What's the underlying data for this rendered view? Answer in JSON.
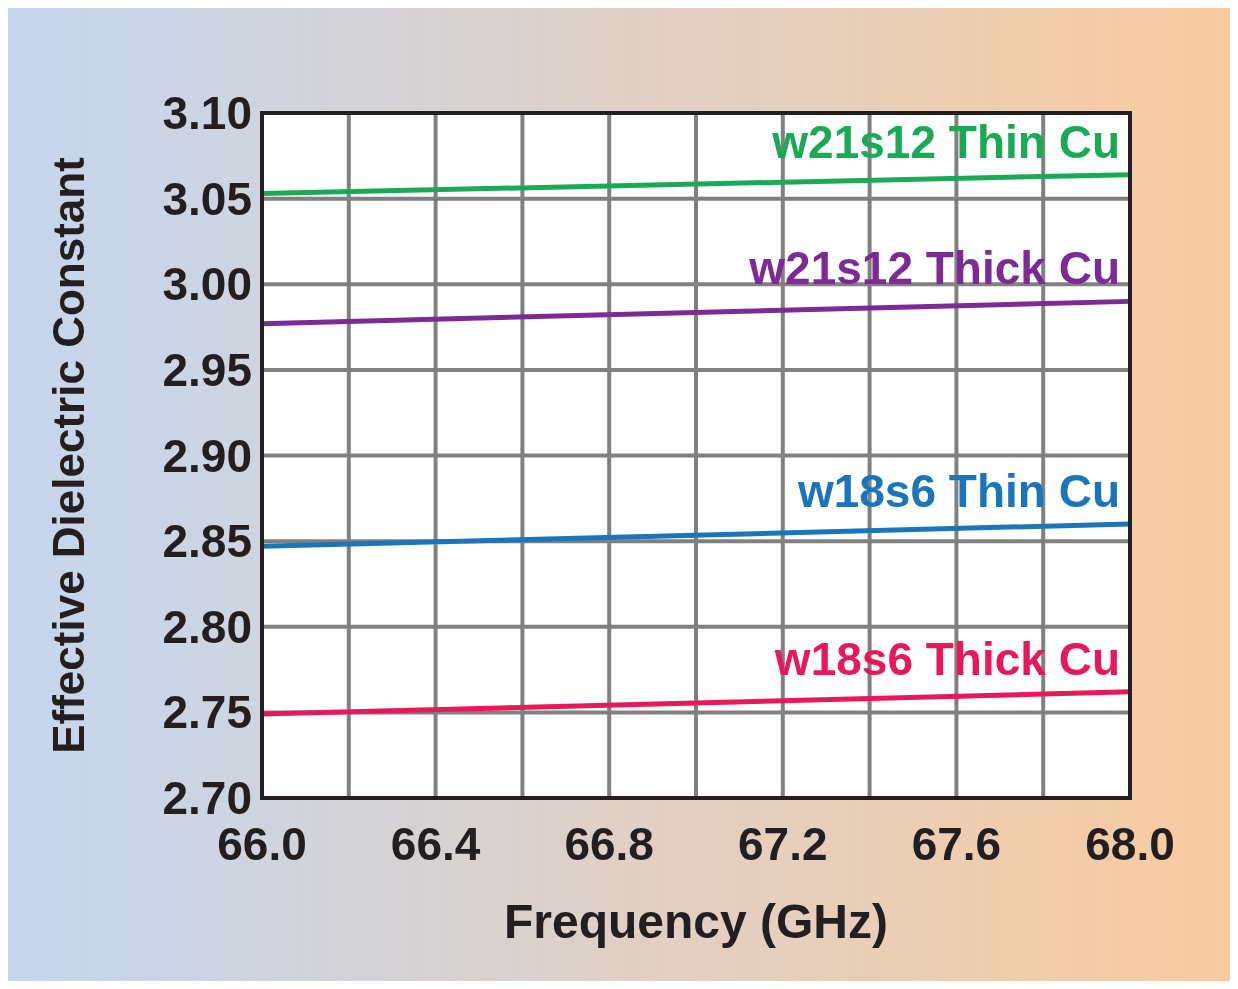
{
  "chart_data": {
    "type": "line",
    "xlabel": "Frequency (GHz)",
    "ylabel": "Effective Dielectric Constant",
    "x": [
      66.0,
      68.0
    ],
    "series": [
      {
        "name": "w21s12 Thin Cu",
        "color": "#1aaa55",
        "values": [
          3.053,
          3.064
        ]
      },
      {
        "name": "w21s12 Thick Cu",
        "color": "#7b2a96",
        "values": [
          2.977,
          2.99
        ]
      },
      {
        "name": "w18s6 Thin Cu",
        "color": "#1a75bb",
        "values": [
          2.847,
          2.86
        ]
      },
      {
        "name": "w18s6 Thick Cu",
        "color": "#e8195a",
        "values": [
          2.749,
          2.762
        ]
      }
    ],
    "xlim": [
      66.0,
      68.0
    ],
    "xticks": [
      {
        "value": 66.0,
        "label": "66.0"
      },
      {
        "value": 66.2,
        "label": null
      },
      {
        "value": 66.4,
        "label": "66.4"
      },
      {
        "value": 66.6,
        "label": null
      },
      {
        "value": 66.8,
        "label": "66.8"
      },
      {
        "value": 67.0,
        "label": null
      },
      {
        "value": 67.2,
        "label": "67.2"
      },
      {
        "value": 67.4,
        "label": null
      },
      {
        "value": 67.6,
        "label": "67.6"
      },
      {
        "value": 67.8,
        "label": null
      },
      {
        "value": 68.0,
        "label": "68.0"
      }
    ],
    "ylim": [
      2.7,
      3.1
    ],
    "yticks": [
      {
        "value": 2.7,
        "label": "2.70"
      },
      {
        "value": 2.75,
        "label": "2.75"
      },
      {
        "value": 2.8,
        "label": "2.80"
      },
      {
        "value": 2.85,
        "label": "2.85"
      },
      {
        "value": 2.9,
        "label": "2.90"
      },
      {
        "value": 2.95,
        "label": "2.95"
      },
      {
        "value": 3.0,
        "label": "3.00"
      },
      {
        "value": 3.05,
        "label": "3.05"
      },
      {
        "value": 3.1,
        "label": "3.10"
      }
    ],
    "grid": true,
    "marker": "none",
    "line_style": "solid"
  }
}
